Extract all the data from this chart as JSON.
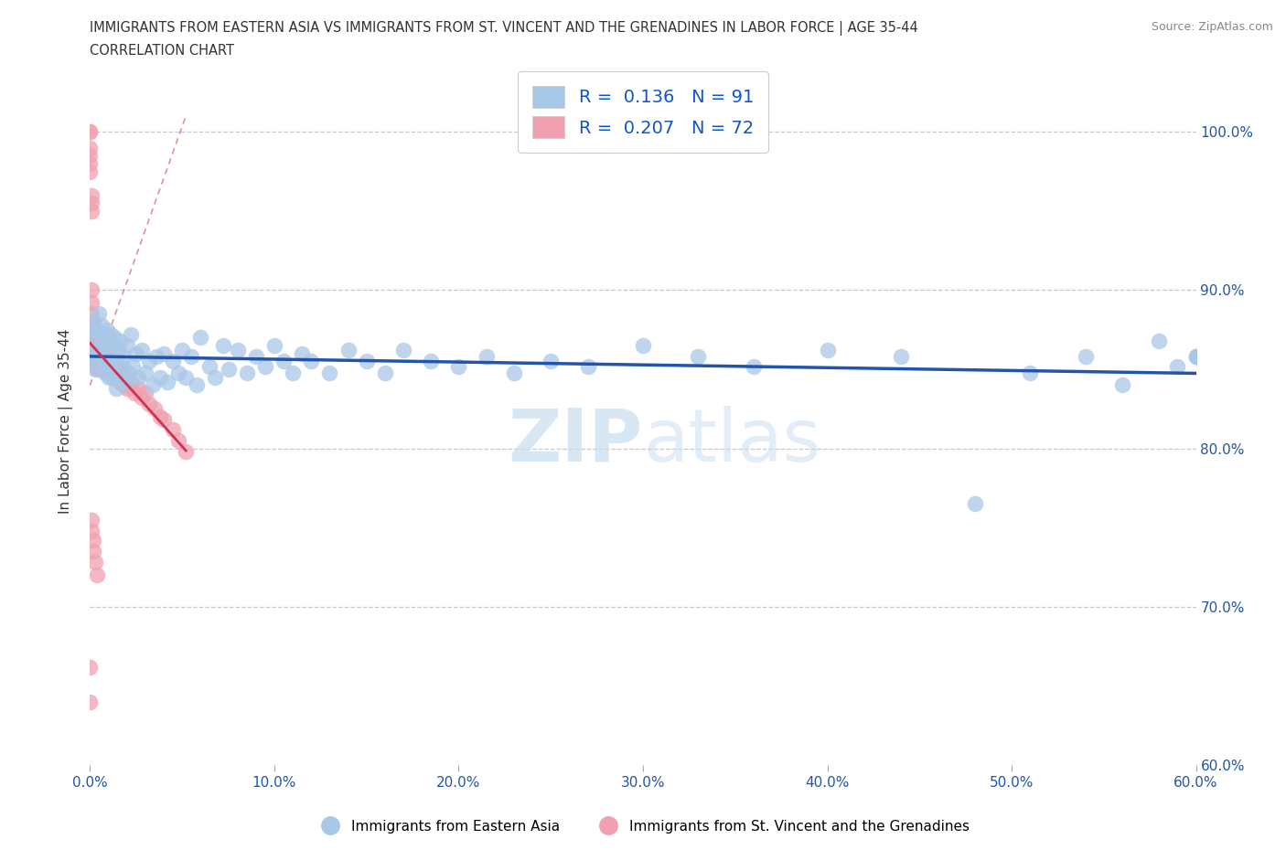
{
  "title_line1": "IMMIGRANTS FROM EASTERN ASIA VS IMMIGRANTS FROM ST. VINCENT AND THE GRENADINES IN LABOR FORCE | AGE 35-44",
  "title_line2": "CORRELATION CHART",
  "source_text": "Source: ZipAtlas.com",
  "ylabel": "In Labor Force | Age 35-44",
  "xmin": 0.0,
  "xmax": 0.6,
  "ymin": 0.6,
  "ymax": 1.035,
  "blue_R": 0.136,
  "blue_N": 91,
  "pink_R": 0.207,
  "pink_N": 72,
  "blue_color": "#a8c8e8",
  "pink_color": "#f0a0b0",
  "blue_edge_color": "#90b8d8",
  "pink_edge_color": "#e090a0",
  "blue_line_color": "#2255aa",
  "pink_line_color": "#cc3355",
  "legend_text_color": "#1155cc",
  "title_color": "#333333",
  "watermark_color": "#ddeeff",
  "blue_scatter_x": [
    0.001,
    0.001,
    0.002,
    0.002,
    0.003,
    0.003,
    0.004,
    0.004,
    0.005,
    0.005,
    0.006,
    0.006,
    0.007,
    0.008,
    0.008,
    0.009,
    0.009,
    0.01,
    0.01,
    0.011,
    0.011,
    0.012,
    0.012,
    0.013,
    0.014,
    0.014,
    0.015,
    0.015,
    0.016,
    0.017,
    0.018,
    0.019,
    0.02,
    0.021,
    0.022,
    0.023,
    0.025,
    0.026,
    0.028,
    0.03,
    0.032,
    0.034,
    0.036,
    0.038,
    0.04,
    0.042,
    0.045,
    0.048,
    0.05,
    0.052,
    0.055,
    0.058,
    0.06,
    0.065,
    0.068,
    0.072,
    0.075,
    0.08,
    0.085,
    0.09,
    0.095,
    0.1,
    0.105,
    0.11,
    0.115,
    0.12,
    0.13,
    0.14,
    0.15,
    0.16,
    0.17,
    0.185,
    0.2,
    0.215,
    0.23,
    0.25,
    0.27,
    0.3,
    0.33,
    0.36,
    0.4,
    0.44,
    0.48,
    0.51,
    0.54,
    0.56,
    0.58,
    0.59,
    0.6,
    0.6,
    0.6
  ],
  "blue_scatter_y": [
    0.88,
    0.86,
    0.875,
    0.855,
    0.87,
    0.85,
    0.875,
    0.858,
    0.885,
    0.862,
    0.878,
    0.855,
    0.87,
    0.865,
    0.848,
    0.875,
    0.855,
    0.868,
    0.845,
    0.872,
    0.852,
    0.865,
    0.845,
    0.87,
    0.855,
    0.838,
    0.862,
    0.845,
    0.868,
    0.852,
    0.858,
    0.842,
    0.865,
    0.848,
    0.872,
    0.852,
    0.86,
    0.845,
    0.862,
    0.848,
    0.855,
    0.84,
    0.858,
    0.845,
    0.86,
    0.842,
    0.855,
    0.848,
    0.862,
    0.845,
    0.858,
    0.84,
    0.87,
    0.852,
    0.845,
    0.865,
    0.85,
    0.862,
    0.848,
    0.858,
    0.852,
    0.865,
    0.855,
    0.848,
    0.86,
    0.855,
    0.848,
    0.862,
    0.855,
    0.848,
    0.862,
    0.855,
    0.852,
    0.858,
    0.848,
    0.855,
    0.852,
    0.865,
    0.858,
    0.852,
    0.862,
    0.858,
    0.765,
    0.848,
    0.858,
    0.84,
    0.868,
    0.852,
    0.858,
    0.858,
    0.858
  ],
  "pink_scatter_x": [
    0.0,
    0.0,
    0.0,
    0.0,
    0.0,
    0.0,
    0.001,
    0.001,
    0.001,
    0.001,
    0.001,
    0.001,
    0.001,
    0.002,
    0.002,
    0.002,
    0.002,
    0.002,
    0.003,
    0.003,
    0.003,
    0.003,
    0.004,
    0.004,
    0.004,
    0.005,
    0.005,
    0.005,
    0.006,
    0.006,
    0.007,
    0.007,
    0.008,
    0.008,
    0.009,
    0.009,
    0.01,
    0.01,
    0.011,
    0.012,
    0.013,
    0.014,
    0.015,
    0.016,
    0.017,
    0.018,
    0.019,
    0.02,
    0.022,
    0.024,
    0.026,
    0.028,
    0.03,
    0.032,
    0.035,
    0.038,
    0.04,
    0.045,
    0.048,
    0.052,
    0.0,
    0.0,
    0.001,
    0.001,
    0.002,
    0.002,
    0.003,
    0.004,
    0.001,
    0.001,
    0.001,
    0.002
  ],
  "pink_scatter_y": [
    1.0,
    1.0,
    0.99,
    0.985,
    0.98,
    0.975,
    0.96,
    0.955,
    0.95,
    0.88,
    0.875,
    0.87,
    0.865,
    0.88,
    0.875,
    0.87,
    0.86,
    0.855,
    0.875,
    0.868,
    0.86,
    0.852,
    0.87,
    0.862,
    0.855,
    0.865,
    0.858,
    0.85,
    0.862,
    0.855,
    0.858,
    0.85,
    0.862,
    0.855,
    0.858,
    0.85,
    0.86,
    0.852,
    0.855,
    0.848,
    0.852,
    0.845,
    0.85,
    0.842,
    0.848,
    0.84,
    0.845,
    0.838,
    0.842,
    0.835,
    0.838,
    0.832,
    0.835,
    0.828,
    0.825,
    0.82,
    0.818,
    0.812,
    0.805,
    0.798,
    0.662,
    0.64,
    0.755,
    0.748,
    0.742,
    0.735,
    0.728,
    0.72,
    0.9,
    0.892,
    0.885,
    0.878
  ]
}
